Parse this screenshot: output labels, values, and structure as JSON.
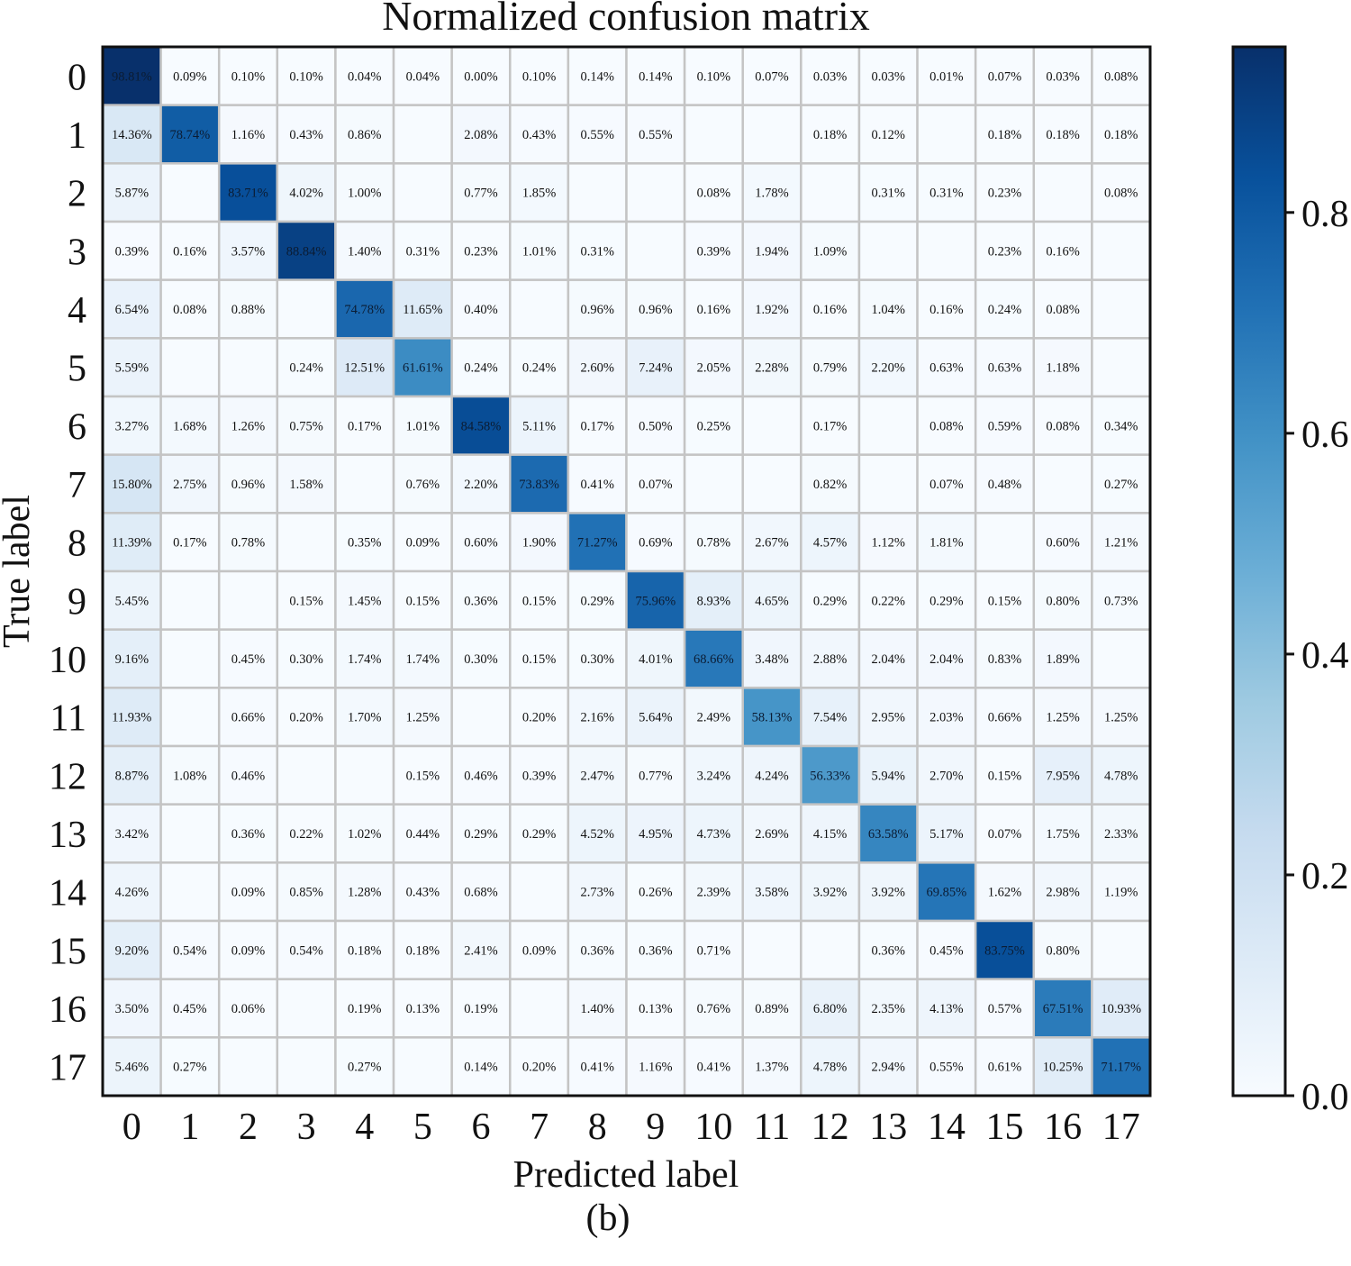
{
  "chart_data": {
    "type": "heatmap",
    "title": "Normalized confusion matrix",
    "xlabel": "Predicted label",
    "ylabel": "True label",
    "caption": "(b)",
    "x_ticks": [
      "0",
      "1",
      "2",
      "3",
      "4",
      "5",
      "6",
      "7",
      "8",
      "9",
      "10",
      "11",
      "12",
      "13",
      "14",
      "15",
      "16",
      "17"
    ],
    "y_ticks": [
      "0",
      "1",
      "2",
      "3",
      "4",
      "5",
      "6",
      "7",
      "8",
      "9",
      "10",
      "11",
      "12",
      "13",
      "14",
      "15",
      "16",
      "17"
    ],
    "colorbar": {
      "range": [
        0.0,
        0.95
      ],
      "ticks": [
        0.0,
        0.2,
        0.4,
        0.6,
        0.8
      ],
      "tick_labels": [
        "0.0",
        "0.2",
        "0.4",
        "0.6",
        "0.8"
      ],
      "colormap": "Blues",
      "colors": [
        "#f7fbff",
        "#deebf7",
        "#c6dbef",
        "#9ecae1",
        "#6baed6",
        "#4292c6",
        "#2171b5",
        "#08519c",
        "#08306b"
      ]
    },
    "cell_labels": [
      [
        "98.81%",
        "0.09%",
        "0.10%",
        "0.10%",
        "0.04%",
        "0.04%",
        "0.00%",
        "0.10%",
        "0.14%",
        "0.14%",
        "0.10%",
        "0.07%",
        "0.03%",
        "0.03%",
        "0.01%",
        "0.07%",
        "0.03%",
        "0.08%"
      ],
      [
        "14.36%",
        "78.74%",
        "1.16%",
        "0.43%",
        "0.86%",
        "",
        "2.08%",
        "0.43%",
        "0.55%",
        "0.55%",
        "",
        "",
        "0.18%",
        "0.12%",
        "",
        "0.18%",
        "0.18%",
        "0.18%"
      ],
      [
        "5.87%",
        "",
        "83.71%",
        "4.02%",
        "1.00%",
        "",
        "0.77%",
        "1.85%",
        "",
        "",
        "0.08%",
        "1.78%",
        "",
        "0.31%",
        "0.31%",
        "0.23%",
        "",
        "0.08%"
      ],
      [
        "0.39%",
        "0.16%",
        "3.57%",
        "88.84%",
        "1.40%",
        "0.31%",
        "0.23%",
        "1.01%",
        "0.31%",
        "",
        "0.39%",
        "1.94%",
        "1.09%",
        "",
        "",
        "0.23%",
        "0.16%",
        ""
      ],
      [
        "6.54%",
        "0.08%",
        "0.88%",
        "",
        "74.78%",
        "11.65%",
        "0.40%",
        "",
        "0.96%",
        "0.96%",
        "0.16%",
        "1.92%",
        "0.16%",
        "1.04%",
        "0.16%",
        "0.24%",
        "0.08%",
        ""
      ],
      [
        "5.59%",
        "",
        "",
        "0.24%",
        "12.51%",
        "61.61%",
        "0.24%",
        "0.24%",
        "2.60%",
        "7.24%",
        "2.05%",
        "2.28%",
        "0.79%",
        "2.20%",
        "0.63%",
        "0.63%",
        "1.18%",
        ""
      ],
      [
        "3.27%",
        "1.68%",
        "1.26%",
        "0.75%",
        "0.17%",
        "1.01%",
        "84.58%",
        "5.11%",
        "0.17%",
        "0.50%",
        "0.25%",
        "",
        "0.17%",
        "",
        "0.08%",
        "0.59%",
        "0.08%",
        "0.34%"
      ],
      [
        "15.80%",
        "2.75%",
        "0.96%",
        "1.58%",
        "",
        "0.76%",
        "2.20%",
        "73.83%",
        "0.41%",
        "0.07%",
        "",
        "",
        "0.82%",
        "",
        "0.07%",
        "0.48%",
        "",
        "0.27%"
      ],
      [
        "11.39%",
        "0.17%",
        "0.78%",
        "",
        "0.35%",
        "0.09%",
        "0.60%",
        "1.90%",
        "71.27%",
        "0.69%",
        "0.78%",
        "2.67%",
        "4.57%",
        "1.12%",
        "1.81%",
        "",
        "0.60%",
        "1.21%"
      ],
      [
        "5.45%",
        "",
        "",
        "0.15%",
        "1.45%",
        "0.15%",
        "0.36%",
        "0.15%",
        "0.29%",
        "75.96%",
        "8.93%",
        "4.65%",
        "0.29%",
        "0.22%",
        "0.29%",
        "0.15%",
        "0.80%",
        "0.73%"
      ],
      [
        "9.16%",
        "",
        "0.45%",
        "0.30%",
        "1.74%",
        "1.74%",
        "0.30%",
        "0.15%",
        "0.30%",
        "4.01%",
        "68.66%",
        "3.48%",
        "2.88%",
        "2.04%",
        "2.04%",
        "0.83%",
        "1.89%",
        ""
      ],
      [
        "11.93%",
        "",
        "0.66%",
        "0.20%",
        "1.70%",
        "1.25%",
        "",
        "0.20%",
        "2.16%",
        "5.64%",
        "2.49%",
        "58.13%",
        "7.54%",
        "2.95%",
        "2.03%",
        "0.66%",
        "1.25%",
        "1.25%"
      ],
      [
        "8.87%",
        "1.08%",
        "0.46%",
        "",
        "",
        "0.15%",
        "0.46%",
        "0.39%",
        "2.47%",
        "0.77%",
        "3.24%",
        "4.24%",
        "56.33%",
        "5.94%",
        "2.70%",
        "0.15%",
        "7.95%",
        "4.78%"
      ],
      [
        "3.42%",
        "",
        "0.36%",
        "0.22%",
        "1.02%",
        "0.44%",
        "0.29%",
        "0.29%",
        "4.52%",
        "4.95%",
        "4.73%",
        "2.69%",
        "4.15%",
        "63.58%",
        "5.17%",
        "0.07%",
        "1.75%",
        "2.33%"
      ],
      [
        "4.26%",
        "",
        "0.09%",
        "0.85%",
        "1.28%",
        "0.43%",
        "0.68%",
        "",
        "2.73%",
        "0.26%",
        "2.39%",
        "3.58%",
        "3.92%",
        "3.92%",
        "69.85%",
        "1.62%",
        "2.98%",
        "1.19%"
      ],
      [
        "9.20%",
        "0.54%",
        "0.09%",
        "0.54%",
        "0.18%",
        "0.18%",
        "2.41%",
        "0.09%",
        "0.36%",
        "0.36%",
        "0.71%",
        "",
        "",
        "0.36%",
        "0.45%",
        "83.75%",
        "0.80%",
        ""
      ],
      [
        "3.50%",
        "0.45%",
        "0.06%",
        "",
        "0.19%",
        "0.13%",
        "0.19%",
        "",
        "1.40%",
        "0.13%",
        "0.76%",
        "0.89%",
        "6.80%",
        "2.35%",
        "4.13%",
        "0.57%",
        "67.51%",
        "10.93%"
      ],
      [
        "5.46%",
        "0.27%",
        "",
        "",
        "0.27%",
        "",
        "0.14%",
        "0.20%",
        "0.41%",
        "1.16%",
        "0.41%",
        "1.37%",
        "4.78%",
        "2.94%",
        "0.55%",
        "0.61%",
        "10.25%",
        "71.17%"
      ]
    ]
  }
}
